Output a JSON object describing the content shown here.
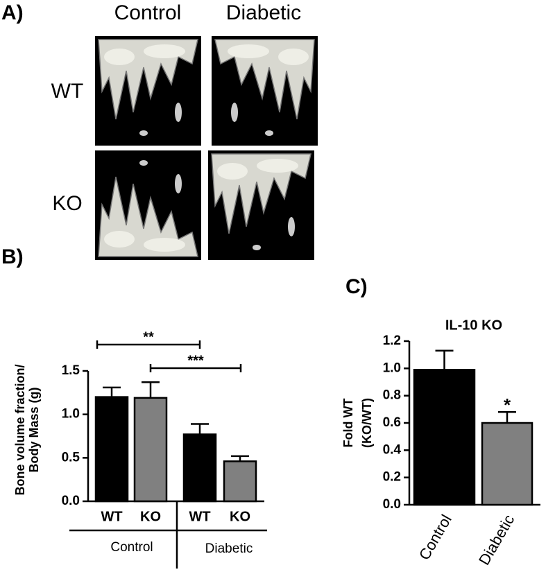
{
  "panels": {
    "a": "A)",
    "b": "B)",
    "c": "C)"
  },
  "images": {
    "columns": [
      "Control",
      "Diabetic"
    ],
    "rows": [
      "WT",
      "KO"
    ]
  },
  "chart_data": [
    {
      "type": "bar",
      "ylabel": [
        "Bone volume fraction/",
        "Body Mass (g)"
      ],
      "categories": [
        "WT",
        "KO",
        "WT",
        "KO"
      ],
      "groups": [
        "Control",
        "Diabetic"
      ],
      "values": [
        1.2,
        1.19,
        0.77,
        0.46
      ],
      "errors": [
        0.11,
        0.18,
        0.12,
        0.06
      ],
      "colors": [
        "#000000",
        "#808080",
        "#000000",
        "#808080"
      ],
      "ylim": [
        0,
        1.5
      ],
      "yticks": [
        {
          "value": 0,
          "label": "0.0"
        },
        {
          "value": 0.5,
          "label": "0.5"
        },
        {
          "value": 1,
          "label": "1.0"
        },
        {
          "value": 1.5,
          "label": "1.5"
        }
      ],
      "annotations": [
        "**",
        "***"
      ]
    },
    {
      "type": "bar",
      "title": "IL-10 KO",
      "ylabel": [
        "Fold WT",
        "(KO/WT)"
      ],
      "categories": [
        "Control",
        "Diabetic"
      ],
      "values": [
        0.99,
        0.6
      ],
      "errors": [
        0.14,
        0.08
      ],
      "colors": [
        "#000000",
        "#808080"
      ],
      "ylim": [
        0,
        1.2
      ],
      "yticks": [
        {
          "value": 0,
          "label": "0.0"
        },
        {
          "value": 0.2,
          "label": "0.2"
        },
        {
          "value": 0.4,
          "label": "0.4"
        },
        {
          "value": 0.6,
          "label": "0.6"
        },
        {
          "value": 0.8,
          "label": "0.8"
        },
        {
          "value": 1,
          "label": "1.0"
        },
        {
          "value": 1.2,
          "label": "1.2"
        }
      ],
      "annotations": [
        "*"
      ]
    }
  ]
}
